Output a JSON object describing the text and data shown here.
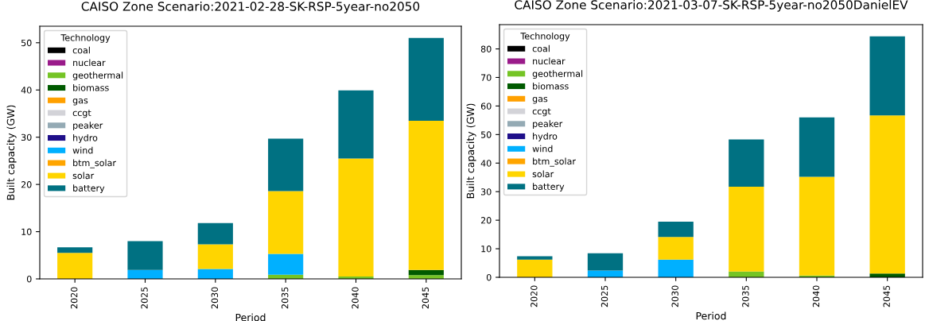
{
  "chart_data": [
    {
      "type": "bar",
      "stacked": true,
      "title": "CAISO Zone Scenario:2021-02-28-SK-RSP-5year-no2050",
      "xlabel": "Period",
      "ylabel": "Built capacity (GW)",
      "legend_title": "Technology",
      "legend": "top left",
      "grid": false,
      "categories": [
        "2020",
        "2025",
        "2030",
        "2035",
        "2040",
        "2045"
      ],
      "ylim": [
        0,
        53.5
      ],
      "yticks": [
        0,
        10,
        20,
        30,
        40,
        50
      ],
      "series": [
        {
          "name": "coal",
          "color": "#000000",
          "values": [
            0,
            0,
            0,
            0,
            0,
            0
          ]
        },
        {
          "name": "nuclear",
          "color": "#9a1b8a",
          "values": [
            0,
            0,
            0,
            0,
            0,
            0
          ]
        },
        {
          "name": "geothermal",
          "color": "#75c425",
          "values": [
            0,
            0,
            0,
            0.9,
            0.5,
            0.8
          ]
        },
        {
          "name": "biomass",
          "color": "#005a00",
          "values": [
            0,
            0,
            0,
            0,
            0,
            1.1
          ]
        },
        {
          "name": "gas",
          "color": "#ffa000",
          "values": [
            0,
            0,
            0,
            0,
            0,
            0
          ]
        },
        {
          "name": "ccgt",
          "color": "#d3d3d8",
          "values": [
            0,
            0,
            0,
            0,
            0,
            0
          ]
        },
        {
          "name": "peaker",
          "color": "#94aab4",
          "values": [
            0,
            0,
            0,
            0,
            0,
            0
          ]
        },
        {
          "name": "hydro",
          "color": "#1f0f8a",
          "values": [
            0,
            0,
            0,
            0,
            0,
            0
          ]
        },
        {
          "name": "wind",
          "color": "#00b0ff",
          "values": [
            0,
            1.9,
            2.1,
            4.4,
            0,
            0
          ]
        },
        {
          "name": "btm_solar",
          "color": "#ffa500",
          "values": [
            0,
            0,
            0,
            0,
            0,
            0
          ]
        },
        {
          "name": "solar",
          "color": "#ffd500",
          "values": [
            5.5,
            0,
            5.2,
            13.3,
            25.0,
            31.6
          ]
        },
        {
          "name": "battery",
          "color": "#007182",
          "values": [
            1.2,
            6.1,
            4.5,
            11.1,
            14.4,
            17.5
          ]
        }
      ]
    },
    {
      "type": "bar",
      "stacked": true,
      "title": "CAISO Zone Scenario:2021-03-07-SK-RSP-5year-no2050DanielEV",
      "xlabel": "Period",
      "ylabel": "Built capacity (GW)",
      "legend_title": "Technology",
      "legend": "top left",
      "grid": false,
      "categories": [
        "2020",
        "2025",
        "2030",
        "2035",
        "2040",
        "2045"
      ],
      "ylim": [
        0,
        88.5
      ],
      "yticks": [
        0,
        10,
        20,
        30,
        40,
        50,
        60,
        70,
        80
      ],
      "series": [
        {
          "name": "coal",
          "color": "#000000",
          "values": [
            0,
            0,
            0,
            0,
            0,
            0
          ]
        },
        {
          "name": "nuclear",
          "color": "#9a1b8a",
          "values": [
            0,
            0,
            0,
            0,
            0,
            0
          ]
        },
        {
          "name": "geothermal",
          "color": "#75c425",
          "values": [
            0,
            0,
            0,
            2.0,
            0.6,
            0
          ]
        },
        {
          "name": "biomass",
          "color": "#005a00",
          "values": [
            0,
            0,
            0,
            0,
            0,
            1.3
          ]
        },
        {
          "name": "gas",
          "color": "#ffa000",
          "values": [
            0,
            0,
            0,
            0,
            0,
            0
          ]
        },
        {
          "name": "ccgt",
          "color": "#d3d3d8",
          "values": [
            0,
            0,
            0,
            0,
            0,
            0
          ]
        },
        {
          "name": "peaker",
          "color": "#94aab4",
          "values": [
            0,
            0,
            0,
            0,
            0,
            0
          ]
        },
        {
          "name": "hydro",
          "color": "#1f0f8a",
          "values": [
            0,
            0,
            0,
            0,
            0,
            0
          ]
        },
        {
          "name": "wind",
          "color": "#00b0ff",
          "values": [
            0,
            2.4,
            6.2,
            0,
            0,
            0
          ]
        },
        {
          "name": "btm_solar",
          "color": "#ffa500",
          "values": [
            0,
            0,
            0,
            0,
            0,
            0
          ]
        },
        {
          "name": "solar",
          "color": "#ffd500",
          "values": [
            6.2,
            0,
            7.9,
            29.7,
            34.6,
            55.4
          ]
        },
        {
          "name": "battery",
          "color": "#007182",
          "values": [
            1.2,
            6.0,
            5.4,
            16.6,
            20.8,
            27.7
          ]
        }
      ]
    }
  ]
}
